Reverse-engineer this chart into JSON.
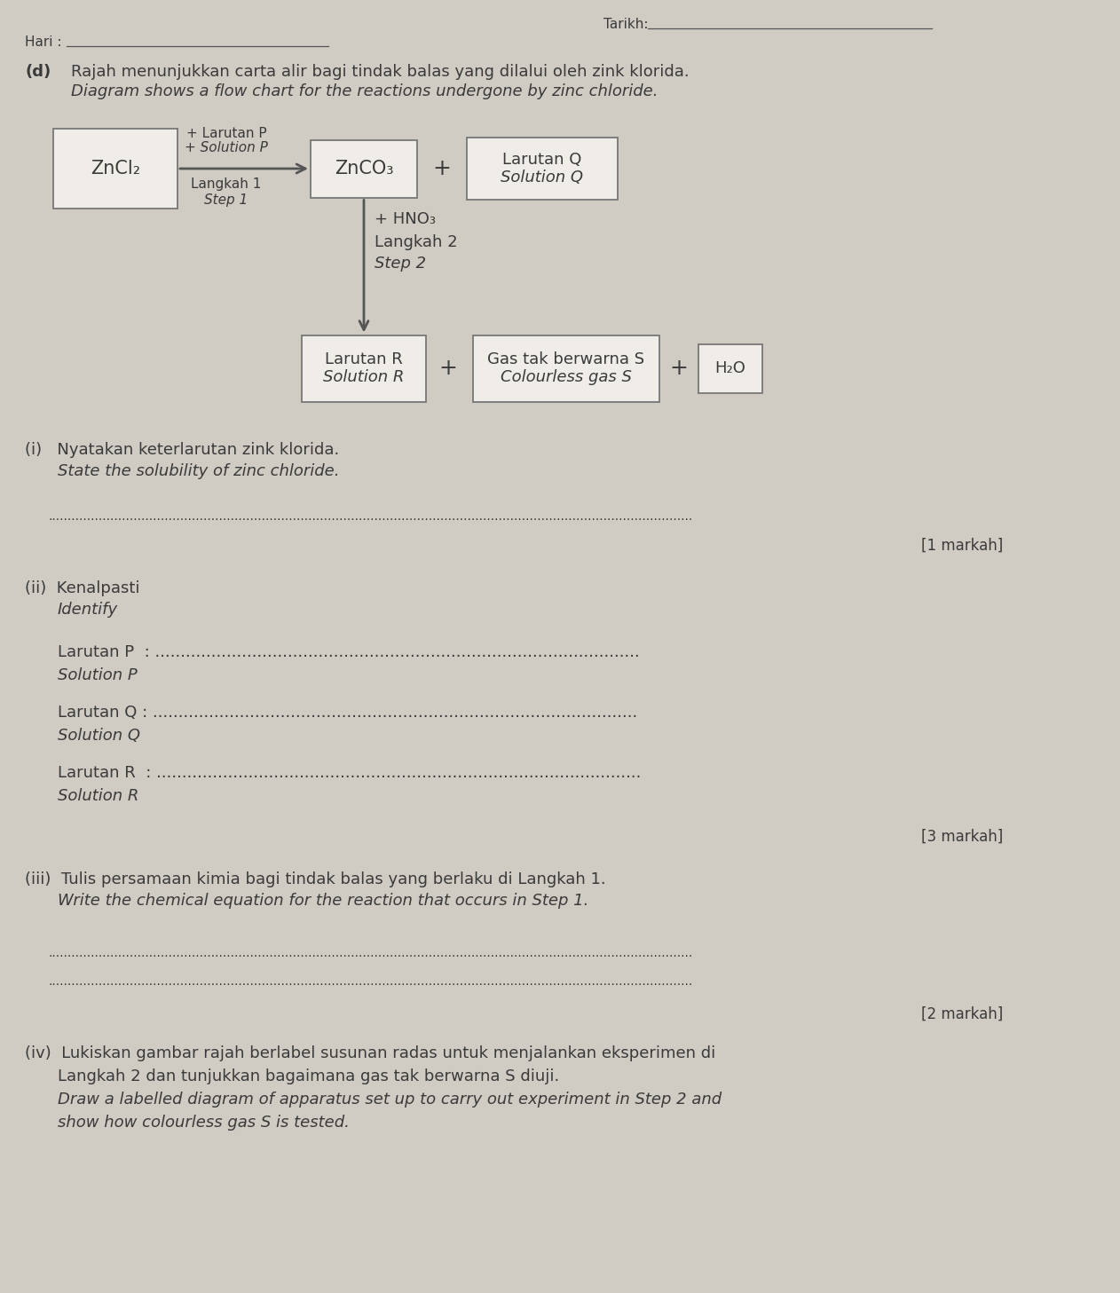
{
  "bg_color": "#d0ccc4",
  "title_label": "Tarikh:",
  "hari_label": "Hari :",
  "question_label": "(d)",
  "question_malay": "Rajah menunjukkan carta alir bagi tindak balas yang dilalui oleh zink klorida.",
  "question_english": "Diagram shows a flow chart for the reactions undergone by zinc chloride.",
  "box_zncl2": "ZnCl₂",
  "box_znco3": "ZnCO₃",
  "box_larutan_q_line1": "Larutan Q",
  "box_larutan_q_line2": "Solution Q",
  "box_larutan_r_line1": "Larutan R",
  "box_larutan_r_line2": "Solution R",
  "box_gas_line1": "Gas tak berwarna S",
  "box_gas_line2": "Colourless gas S",
  "box_h2o": "H₂O",
  "arrow_label_larutan_p": "+ Larutan P",
  "arrow_label_solution_p": "+ Solution P",
  "arrow_label_langkah1": "Langkah 1",
  "arrow_label_step1": "Step 1",
  "plus_sign": "+",
  "hno3_label": "+ HNO₃",
  "langkah2_label": "Langkah 2",
  "step2_label": "Step 2",
  "sub_i_malay": "(i)   Nyatakan keterlarutan zink klorida.",
  "sub_i_english": "State the solubility of zinc chloride.",
  "dotted_line": "......................................................................................................................................................................",
  "mark_1": "[1 markah]",
  "sub_ii_malay": "(ii)  Kenalpasti",
  "sub_ii_english": "Identify",
  "larutan_p_line1": "Larutan P  : ...............................................................................................",
  "solution_p": "Solution P",
  "larutan_q_line1": "Larutan Q : ...............................................................................................",
  "solution_q": "Solution Q",
  "larutan_r_line1": "Larutan R  : ...............................................................................................",
  "solution_r": "Solution R",
  "mark_3": "[3 markah]",
  "sub_iii_malay": "(iii)  Tulis persamaan kimia bagi tindak balas yang berlaku di Langkah 1.",
  "sub_iii_english": "Write the chemical equation for the reaction that occurs in Step 1.",
  "mark_2": "[2 markah]",
  "sub_iv_line1_malay": "(iv)  Lukiskan gambar rajah berlabel susunan radas untuk menjalankan eksperimen di",
  "sub_iv_line2_malay": "Langkah 2 dan tunjukkan bagaimana gas tak berwarna S diuji.",
  "sub_iv_line1_english": "Draw a labelled diagram of apparatus set up to carry out experiment in Step 2 and",
  "sub_iv_line2_english": "show how colourless gas S is tested.",
  "text_color": "#3a3a3a",
  "box_facecolor": "#f0ede8",
  "box_edgecolor": "#777777",
  "line_color": "#555555"
}
